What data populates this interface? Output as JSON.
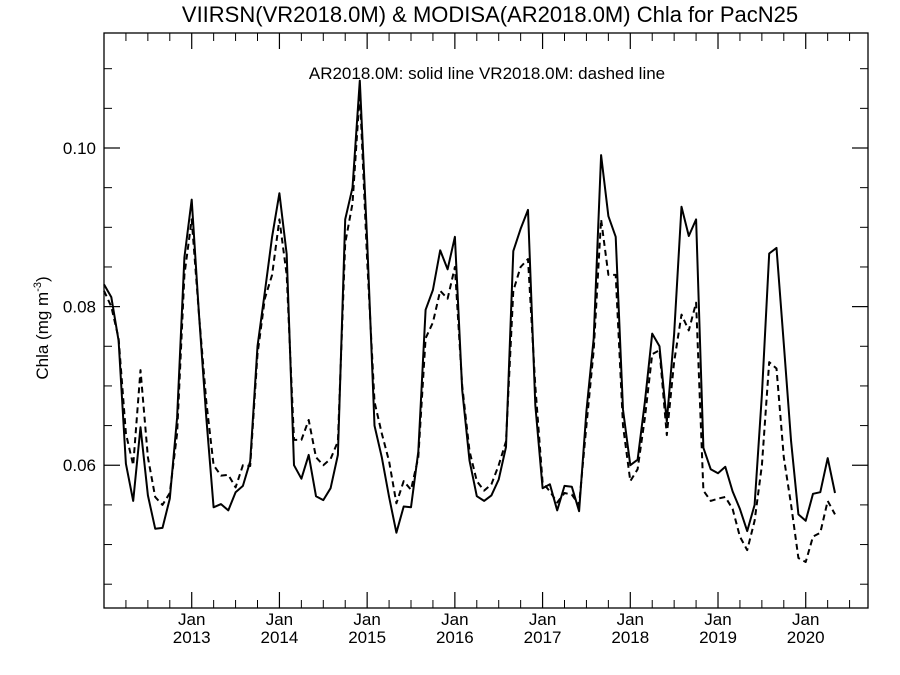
{
  "chart_data": {
    "type": "line",
    "title": "VIIRSN(VR2018.0M) & MODISA(AR2018.0M)  Chla for PacN25",
    "annotation": "AR2018.0M: solid line   VR2018.0M: dashed line",
    "ylabel": "Chla (mg m",
    "ylabel_superscript": "-3",
    "ylabel_close": ")",
    "xlabel": "",
    "ylim": [
      0.042,
      0.1145
    ],
    "xlim": [
      2012.0,
      2020.71
    ],
    "yticks": [
      {
        "value": 0.06,
        "label": "0.06"
      },
      {
        "value": 0.08,
        "label": "0.08"
      },
      {
        "value": 0.1,
        "label": "0.10"
      }
    ],
    "yminor": [
      0.045,
      0.05,
      0.055,
      0.065,
      0.07,
      0.075,
      0.085,
      0.09,
      0.095,
      0.105,
      0.11
    ],
    "xticks": [
      {
        "value": 2013.0,
        "month": "Jan",
        "year": "2013"
      },
      {
        "value": 2014.0,
        "month": "Jan",
        "year": "2014"
      },
      {
        "value": 2015.0,
        "month": "Jan",
        "year": "2015"
      },
      {
        "value": 2016.0,
        "month": "Jan",
        "year": "2016"
      },
      {
        "value": 2017.0,
        "month": "Jan",
        "year": "2017"
      },
      {
        "value": 2018.0,
        "month": "Jan",
        "year": "2018"
      },
      {
        "value": 2019.0,
        "month": "Jan",
        "year": "2019"
      },
      {
        "value": 2020.0,
        "month": "Jan",
        "year": "2020"
      }
    ],
    "grid": false,
    "legend": "none",
    "x_start": 2012.0,
    "x_step_months": 1,
    "series": [
      {
        "name": "AR2018.0M",
        "style": "solid",
        "values": [
          0.0828,
          0.0812,
          0.0757,
          0.0602,
          0.0555,
          0.0648,
          0.0562,
          0.052,
          0.0521,
          0.0558,
          0.066,
          0.0862,
          0.0935,
          0.079,
          0.066,
          0.0547,
          0.0551,
          0.0543,
          0.0566,
          0.0574,
          0.0605,
          0.075,
          0.0818,
          0.0888,
          0.0943,
          0.0866,
          0.06,
          0.0583,
          0.0613,
          0.0561,
          0.0556,
          0.0571,
          0.0613,
          0.091,
          0.095,
          0.1085,
          0.0885,
          0.065,
          0.061,
          0.056,
          0.0515,
          0.0548,
          0.0547,
          0.0617,
          0.0796,
          0.0821,
          0.0871,
          0.0847,
          0.0888,
          0.0695,
          0.0606,
          0.0561,
          0.0555,
          0.0562,
          0.0582,
          0.0623,
          0.087,
          0.0898,
          0.0922,
          0.0676,
          0.0571,
          0.0576,
          0.0543,
          0.0574,
          0.0573,
          0.0542,
          0.0668,
          0.076,
          0.0991,
          0.0914,
          0.0888,
          0.067,
          0.06,
          0.0607,
          0.068,
          0.0766,
          0.075,
          0.0655,
          0.0765,
          0.0926,
          0.0889,
          0.091,
          0.0622,
          0.0595,
          0.059,
          0.0598,
          0.0567,
          0.0545,
          0.0517,
          0.055,
          0.0689,
          0.0867,
          0.0874,
          0.0753,
          0.063,
          0.0538,
          0.053,
          0.0564,
          0.0566,
          0.0609,
          0.0565
        ]
      },
      {
        "name": "VR2018.0M",
        "style": "dashed",
        "values": [
          0.082,
          0.08,
          0.076,
          0.064,
          0.06,
          0.072,
          0.061,
          0.056,
          0.055,
          0.0565,
          0.064,
          0.084,
          0.091,
          0.079,
          0.068,
          0.06,
          0.0587,
          0.0588,
          0.0572,
          0.06,
          0.0599,
          0.074,
          0.081,
          0.084,
          0.091,
          0.084,
          0.0632,
          0.0632,
          0.0657,
          0.061,
          0.06,
          0.0608,
          0.063,
          0.088,
          0.093,
          0.107,
          0.086,
          0.068,
          0.064,
          0.0605,
          0.0552,
          0.058,
          0.0569,
          0.061,
          0.076,
          0.078,
          0.082,
          0.081,
          0.085,
          0.07,
          0.0618,
          0.058,
          0.0568,
          0.0576,
          0.06,
          0.063,
          0.082,
          0.085,
          0.086,
          0.07,
          0.0578,
          0.0567,
          0.0553,
          0.0565,
          0.0563,
          0.055,
          0.065,
          0.0745,
          0.091,
          0.084,
          0.084,
          0.065,
          0.058,
          0.0595,
          0.066,
          0.074,
          0.0745,
          0.0638,
          0.073,
          0.079,
          0.077,
          0.0805,
          0.0568,
          0.0555,
          0.0558,
          0.056,
          0.0545,
          0.051,
          0.0493,
          0.053,
          0.06,
          0.073,
          0.0722,
          0.061,
          0.055,
          0.0483,
          0.0478,
          0.051,
          0.0515,
          0.0555,
          0.0538
        ]
      }
    ]
  }
}
